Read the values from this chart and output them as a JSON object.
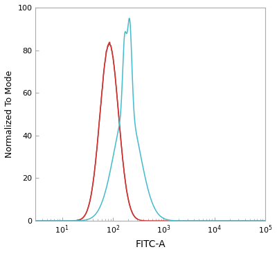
{
  "xlabel": "FITC-A",
  "ylabel": "Normalized To Mode",
  "xlim": [
    3,
    100000
  ],
  "ylim": [
    0,
    100
  ],
  "yticks": [
    0,
    20,
    40,
    60,
    80,
    100
  ],
  "background_color": "#ffffff",
  "red_color": "#cc3333",
  "blue_color": "#44bbcc",
  "red_peak_x": 85,
  "red_peak_y": 83,
  "red_sigma": 0.42,
  "blue_peak1_x": 170,
  "blue_peak2_x": 215,
  "blue_peak1_y": 88,
  "blue_peak2_y": 95,
  "blue_sigma1": 0.09,
  "blue_sigma2": 0.1,
  "blue_envelope_x": 190,
  "blue_envelope_sigma": 0.6,
  "blue_peak_y": 95
}
